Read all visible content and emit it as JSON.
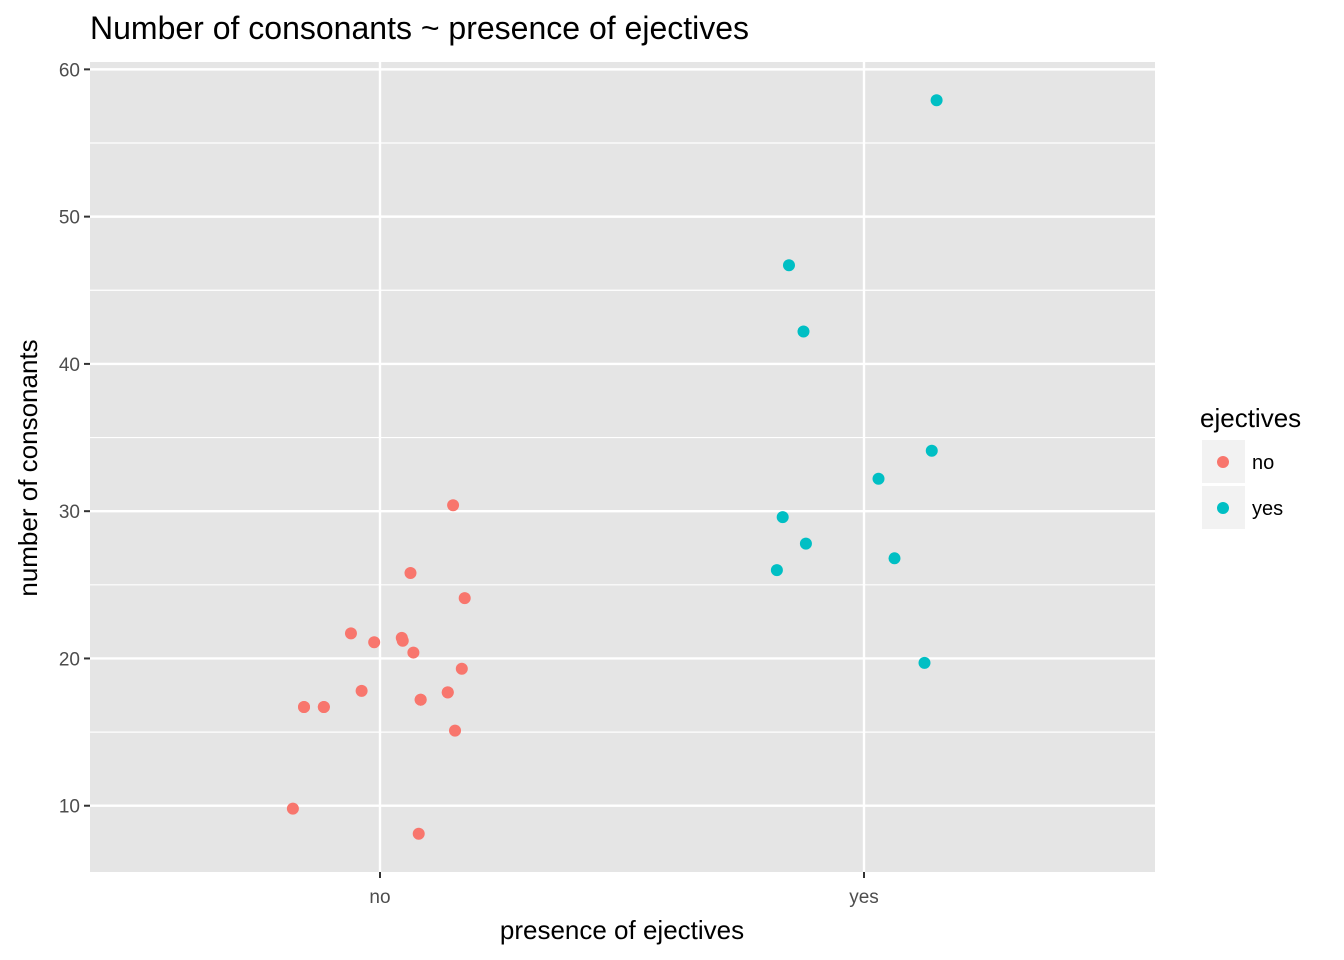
{
  "chart_data": {
    "type": "scatter",
    "title": "Number of consonants ~ presence of ejectives",
    "xlabel": "presence of ejectives",
    "ylabel": "number of consonants",
    "categories": [
      "no",
      "yes"
    ],
    "ylim": [
      5.5,
      60.5
    ],
    "yticks": [
      "10",
      "20",
      "30",
      "40",
      "50",
      "60"
    ],
    "grid": true,
    "legend": {
      "title": "ejectives",
      "position": "right",
      "entries": [
        "no",
        "yes"
      ]
    },
    "colors": {
      "no": "#f8766d",
      "yes": "#00bfc4",
      "panel": "#e5e5e5",
      "grid": "#ffffff"
    },
    "series": [
      {
        "name": "no",
        "x": [
          0.4,
          0.42,
          0.22,
          0.39,
          0.2,
          0.24,
          0.22,
          0.17,
          0.31,
          0.31,
          0.33,
          0.35,
          0.39,
          0.31,
          0.38,
          0.26,
          0.28,
          0.26,
          0.33,
          0.27,
          0.25
        ],
        "y": [
          30.4,
          24.1,
          25.8,
          19.3,
          21.7,
          21.1,
          21.4,
          20.4,
          17.8,
          17.7,
          17.2,
          16.7,
          16.7,
          15.1,
          9.8,
          8.1,
          21.2,
          17.7,
          17.2,
          16.7,
          16.7
        ],
        "xcat": "no",
        "jitter": [
          0.151,
          0.175,
          0.063,
          0.169,
          -0.06,
          -0.012,
          0.045,
          0.069,
          -0.038,
          0.14,
          0.084,
          -0.116,
          -0.157,
          0.155,
          -0.18,
          0.08,
          0.047,
          0.14,
          0.084,
          -0.116,
          -0.157
        ]
      },
      {
        "name": "yes",
        "x": [
          0.15,
          0.18,
          0.21,
          0.14,
          0.03,
          0.06,
          0.12,
          0.18,
          0.18,
          0.12
        ],
        "y": [
          57.9,
          46.7,
          42.2,
          34.1,
          32.2,
          26.8,
          29.6,
          27.8,
          26.0,
          19.7
        ],
        "xcat": "yes",
        "jitter": [
          0.15,
          -0.155,
          -0.125,
          0.14,
          0.03,
          0.063,
          -0.168,
          -0.12,
          -0.18,
          0.125
        ]
      }
    ]
  }
}
